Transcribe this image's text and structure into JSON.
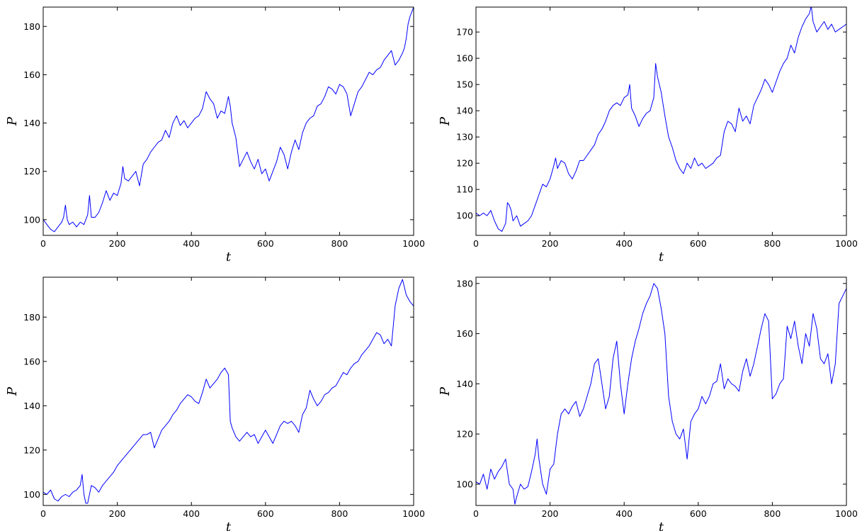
{
  "chart_data": [
    {
      "type": "line",
      "xlabel": "t",
      "ylabel": "P",
      "xlim": [
        0,
        1000
      ],
      "ylim": [
        93.5,
        188
      ],
      "xticks": [
        0,
        200,
        400,
        600,
        800,
        1000
      ],
      "yticks": [
        100,
        120,
        140,
        160,
        180
      ],
      "grid": false,
      "color": "#0000ff",
      "series": [
        {
          "x": [
            0,
            10,
            20,
            30,
            40,
            50,
            55,
            60,
            65,
            70,
            80,
            90,
            100,
            110,
            120,
            125,
            130,
            140,
            150,
            160,
            170,
            180,
            190,
            200,
            210,
            215,
            220,
            230,
            240,
            250,
            260,
            270,
            280,
            290,
            300,
            310,
            320,
            330,
            340,
            350,
            360,
            370,
            380,
            390,
            400,
            410,
            420,
            430,
            440,
            450,
            460,
            470,
            480,
            490,
            500,
            505,
            510,
            520,
            530,
            540,
            550,
            560,
            570,
            580,
            590,
            600,
            610,
            620,
            630,
            640,
            650,
            660,
            670,
            680,
            690,
            700,
            710,
            720,
            730,
            740,
            750,
            760,
            770,
            780,
            790,
            800,
            810,
            820,
            830,
            840,
            850,
            860,
            870,
            880,
            890,
            900,
            910,
            920,
            930,
            940,
            950,
            960,
            970,
            975,
            980,
            985,
            990,
            995,
            1000
          ],
          "y": [
            100,
            98,
            96,
            95,
            97,
            99,
            101,
            106,
            100,
            98,
            99,
            97,
            99,
            98,
            102,
            110,
            101,
            101,
            103,
            107,
            112,
            108,
            111,
            110,
            115,
            122,
            117,
            116,
            118,
            120,
            114,
            123,
            125,
            128,
            130,
            132,
            133,
            137,
            134,
            140,
            143,
            139,
            141,
            138,
            140,
            142,
            143,
            146,
            153,
            150,
            148,
            142,
            145,
            144,
            151,
            147,
            140,
            134,
            122,
            125,
            128,
            124,
            121,
            125,
            119,
            121,
            116,
            120,
            124,
            130,
            127,
            121,
            128,
            133,
            129,
            136,
            140,
            142,
            143,
            147,
            148,
            151,
            155,
            154,
            152,
            156,
            155,
            152,
            143,
            148,
            153,
            155,
            158,
            161,
            160,
            162,
            163,
            166,
            168,
            170,
            164,
            166,
            169,
            171,
            175,
            181,
            184,
            186,
            188
          ]
        }
      ]
    },
    {
      "type": "line",
      "xlabel": "t",
      "ylabel": "P",
      "xlim": [
        0,
        1000
      ],
      "ylim": [
        92.5,
        179.5
      ],
      "xticks": [
        0,
        200,
        400,
        600,
        800,
        1000
      ],
      "yticks": [
        100,
        110,
        120,
        130,
        140,
        150,
        160,
        170
      ],
      "grid": false,
      "color": "#0000ff",
      "series": [
        {
          "x": [
            0,
            10,
            20,
            30,
            40,
            50,
            60,
            70,
            80,
            85,
            90,
            95,
            100,
            110,
            120,
            130,
            140,
            150,
            160,
            170,
            180,
            190,
            200,
            210,
            215,
            220,
            230,
            240,
            250,
            260,
            270,
            280,
            290,
            300,
            310,
            320,
            330,
            340,
            350,
            360,
            370,
            380,
            390,
            400,
            410,
            415,
            420,
            430,
            440,
            450,
            460,
            470,
            480,
            485,
            490,
            500,
            510,
            520,
            530,
            540,
            550,
            560,
            570,
            580,
            590,
            600,
            610,
            620,
            630,
            640,
            650,
            660,
            670,
            680,
            690,
            700,
            710,
            720,
            730,
            740,
            750,
            760,
            770,
            780,
            790,
            800,
            810,
            820,
            830,
            840,
            850,
            860,
            870,
            880,
            890,
            900,
            905,
            910,
            920,
            930,
            940,
            950,
            960,
            970,
            980,
            990,
            1000
          ],
          "y": [
            101,
            100,
            101,
            100,
            102,
            98,
            95,
            94,
            97,
            105,
            104,
            102,
            98,
            100,
            96,
            97,
            98,
            100,
            104,
            108,
            112,
            111,
            114,
            119,
            122,
            118,
            121,
            120,
            116,
            114,
            117,
            121,
            121,
            123,
            125,
            127,
            131,
            133,
            136,
            140,
            142,
            143,
            142,
            145,
            146,
            150,
            141,
            138,
            134,
            137,
            139,
            140,
            145,
            158,
            153,
            147,
            138,
            130,
            126,
            121,
            118,
            116,
            120,
            118,
            122,
            119,
            120,
            118,
            119,
            120,
            122,
            123,
            132,
            136,
            135,
            132,
            141,
            136,
            138,
            135,
            142,
            145,
            148,
            152,
            150,
            147,
            151,
            155,
            158,
            160,
            165,
            162,
            168,
            172,
            175,
            177,
            180,
            174,
            170,
            172,
            174,
            171,
            173,
            170,
            171,
            172,
            173
          ]
        }
      ]
    },
    {
      "type": "line",
      "xlabel": "t",
      "ylabel": "P",
      "xlim": [
        0,
        1000
      ],
      "ylim": [
        95,
        198
      ],
      "xticks": [
        0,
        200,
        400,
        600,
        800,
        1000
      ],
      "yticks": [
        100,
        120,
        140,
        160,
        180
      ],
      "grid": false,
      "color": "#0000ff",
      "series": [
        {
          "x": [
            0,
            10,
            20,
            30,
            40,
            50,
            60,
            70,
            80,
            90,
            100,
            105,
            110,
            115,
            120,
            130,
            140,
            150,
            160,
            170,
            180,
            190,
            200,
            210,
            220,
            230,
            240,
            250,
            260,
            270,
            280,
            290,
            300,
            310,
            320,
            330,
            340,
            350,
            360,
            370,
            380,
            390,
            400,
            410,
            420,
            430,
            440,
            450,
            460,
            470,
            480,
            490,
            500,
            505,
            510,
            520,
            530,
            540,
            550,
            560,
            570,
            580,
            590,
            600,
            610,
            620,
            630,
            640,
            650,
            660,
            670,
            680,
            690,
            700,
            710,
            720,
            730,
            740,
            750,
            760,
            770,
            780,
            790,
            800,
            810,
            820,
            830,
            840,
            850,
            860,
            870,
            880,
            890,
            900,
            910,
            920,
            930,
            940,
            950,
            960,
            970,
            980,
            990,
            1000
          ],
          "y": [
            101,
            100,
            102,
            98,
            97,
            99,
            100,
            99,
            101,
            102,
            104,
            109,
            100,
            96,
            96,
            104,
            103,
            101,
            104,
            106,
            108,
            110,
            113,
            115,
            117,
            119,
            121,
            123,
            125,
            127,
            127,
            128,
            121,
            125,
            129,
            131,
            133,
            136,
            138,
            141,
            143,
            145,
            144,
            142,
            141,
            146,
            152,
            148,
            150,
            152,
            155,
            157,
            154,
            133,
            130,
            126,
            124,
            126,
            128,
            126,
            127,
            123,
            126,
            129,
            126,
            123,
            127,
            131,
            133,
            132,
            133,
            131,
            128,
            136,
            139,
            147,
            143,
            140,
            142,
            145,
            146,
            148,
            149,
            152,
            155,
            154,
            157,
            159,
            160,
            163,
            165,
            167,
            170,
            173,
            172,
            168,
            170,
            167,
            185,
            193,
            197,
            190,
            187,
            185
          ]
        }
      ]
    },
    {
      "type": "line",
      "xlabel": "t",
      "ylabel": "P",
      "xlim": [
        0,
        1000
      ],
      "ylim": [
        91.5,
        182.5
      ],
      "xticks": [
        0,
        200,
        400,
        600,
        800,
        1000
      ],
      "yticks": [
        100,
        120,
        140,
        160,
        180
      ],
      "grid": false,
      "color": "#0000ff",
      "series": [
        {
          "x": [
            0,
            10,
            20,
            30,
            40,
            50,
            60,
            70,
            80,
            90,
            100,
            105,
            110,
            120,
            130,
            140,
            150,
            160,
            165,
            170,
            180,
            190,
            200,
            210,
            220,
            230,
            240,
            250,
            260,
            270,
            280,
            290,
            300,
            310,
            320,
            330,
            340,
            350,
            360,
            370,
            380,
            390,
            400,
            410,
            420,
            430,
            440,
            450,
            460,
            470,
            480,
            490,
            500,
            510,
            520,
            530,
            540,
            550,
            560,
            570,
            580,
            590,
            600,
            610,
            620,
            630,
            640,
            650,
            660,
            670,
            680,
            690,
            700,
            710,
            720,
            730,
            740,
            750,
            760,
            770,
            780,
            790,
            800,
            810,
            820,
            830,
            840,
            850,
            860,
            870,
            880,
            890,
            900,
            910,
            920,
            930,
            940,
            950,
            960,
            970,
            975,
            980,
            990,
            1000
          ],
          "y": [
            101,
            100,
            104,
            98,
            106,
            102,
            105,
            107,
            110,
            100,
            98,
            92,
            95,
            100,
            98,
            99,
            105,
            112,
            118,
            110,
            100,
            96,
            106,
            108,
            120,
            128,
            130,
            128,
            131,
            133,
            127,
            130,
            135,
            140,
            148,
            150,
            140,
            130,
            135,
            150,
            157,
            140,
            128,
            140,
            150,
            157,
            162,
            168,
            172,
            175,
            180,
            178,
            170,
            160,
            135,
            125,
            120,
            118,
            122,
            110,
            125,
            128,
            130,
            135,
            132,
            135,
            140,
            141,
            148,
            138,
            142,
            140,
            139,
            137,
            145,
            150,
            143,
            148,
            155,
            162,
            168,
            165,
            134,
            136,
            140,
            142,
            163,
            158,
            165,
            155,
            148,
            160,
            155,
            168,
            162,
            150,
            148,
            152,
            140,
            148,
            160,
            172,
            175,
            178
          ]
        }
      ]
    }
  ]
}
